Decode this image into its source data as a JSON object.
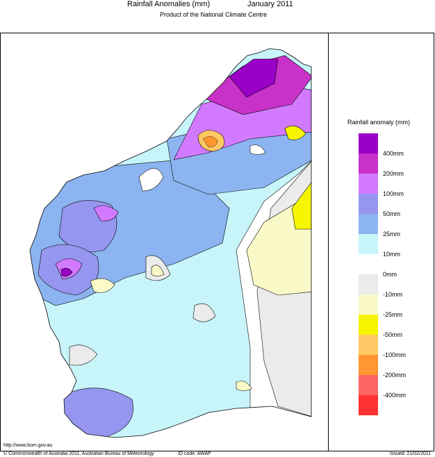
{
  "header": {
    "title": "Rainfall Anomalies (mm)",
    "period": "January 2011",
    "subtitle": "Product of the National Climate Centre"
  },
  "legend": {
    "title": "Rainfall anomaly (mm)",
    "colors": [
      "#9b00c8",
      "#c832c8",
      "#d27aff",
      "#9696f0",
      "#8cb4f0",
      "#c8f5fa",
      "#ffffff",
      "#ebebeb",
      "#fafac8",
      "#f5f500",
      "#ffc864",
      "#ff9632",
      "#ff6464",
      "#ff3232"
    ],
    "labels": [
      "400mm",
      "200mm",
      "100mm",
      "50mm",
      "25mm",
      "10mm",
      "0mm",
      "-10mm",
      "-25mm",
      "-50mm",
      "-100mm",
      "-200mm",
      "-400mm"
    ]
  },
  "footer": {
    "url": "http://www.bom.gov.au",
    "copyright": "© Commonwealth of Australia 2011, Australian Bureau of Meteorology",
    "id_code": "ID code: AWAP",
    "issued": "Issued: 21/02/2011"
  }
}
